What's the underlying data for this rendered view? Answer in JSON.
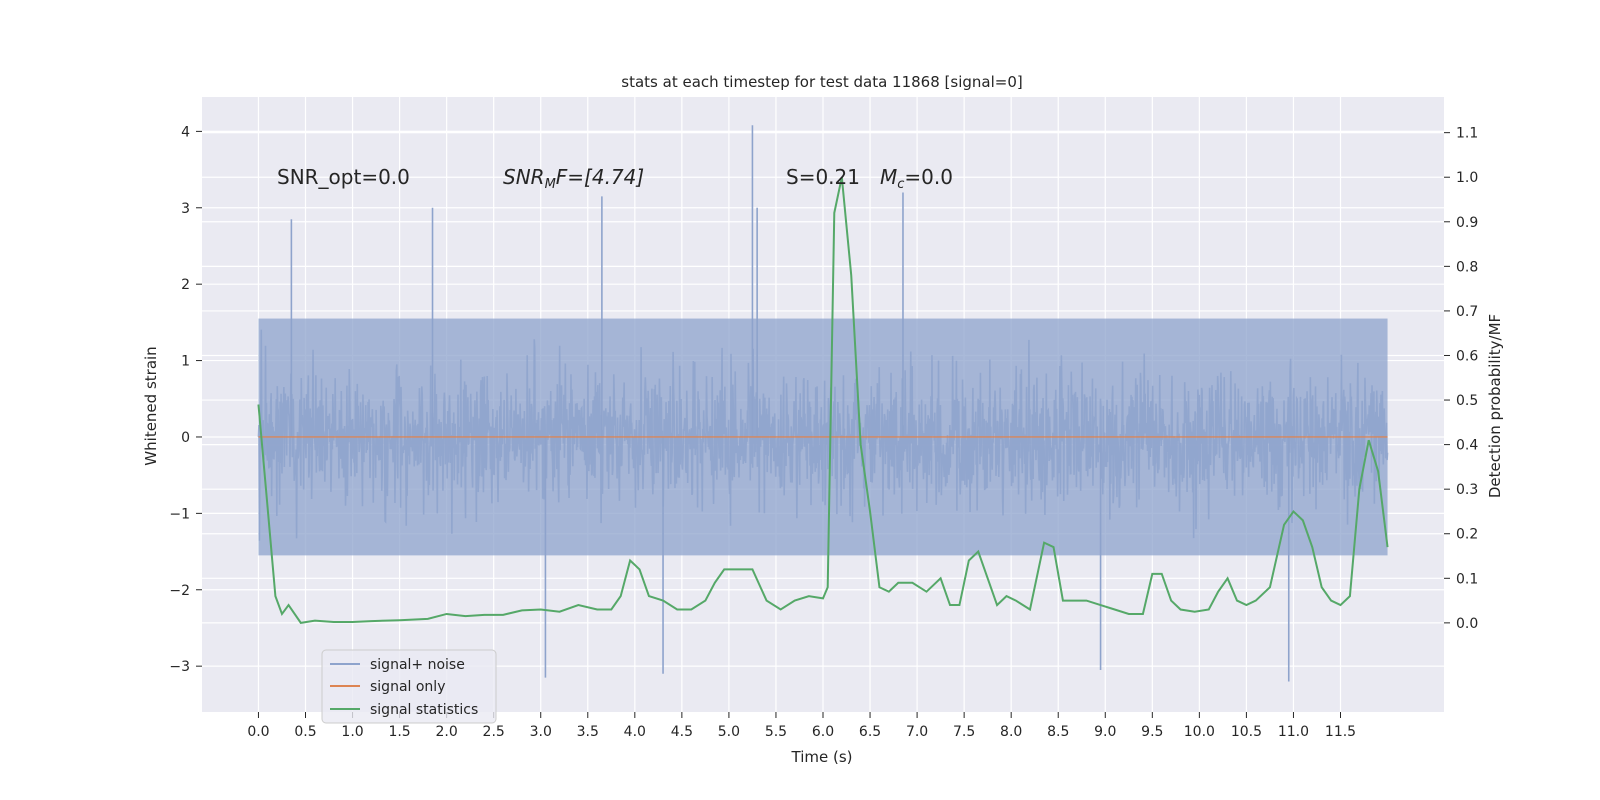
{
  "chart_data": {
    "type": "line",
    "title": "stats at each timestep for test data 11868 [signal=0]",
    "xlabel": "Time (s)",
    "ylabel_left": "Whitened strain",
    "ylabel_right": "Detection probability/MF",
    "xlim": [
      -0.6,
      12.6
    ],
    "ylim_left": [
      -3.6,
      4.45
    ],
    "ylim_right": [
      -0.2,
      1.18
    ],
    "x_ticks": [
      0.0,
      0.5,
      1.0,
      1.5,
      2.0,
      2.5,
      3.0,
      3.5,
      4.0,
      4.5,
      5.0,
      5.5,
      6.0,
      6.5,
      7.0,
      7.5,
      8.0,
      8.5,
      9.0,
      9.5,
      10.0,
      10.5,
      11.0,
      11.5
    ],
    "x_tick_labels": [
      "0.0",
      "0.5",
      "1.0",
      "1.5",
      "2.0",
      "2.5",
      "3.0",
      "3.5",
      "4.0",
      "4.5",
      "5.0",
      "5.5",
      "6.0",
      "6.5",
      "7.0",
      "7.5",
      "8.0",
      "8.5",
      "9.0",
      "9.5",
      "10.0",
      "10.5",
      "11.0",
      "11.5"
    ],
    "y_left_ticks": [
      4,
      3,
      2,
      1,
      0,
      -1,
      -2,
      -3
    ],
    "y_left_tick_labels": [
      "4",
      "3",
      "2",
      "1",
      "0",
      "−1",
      "−2",
      "−3"
    ],
    "y_right_ticks": [
      1.1,
      1.0,
      0.9,
      0.8,
      0.7,
      0.6,
      0.5,
      0.4,
      0.3,
      0.2,
      0.1,
      0.0
    ],
    "y_right_tick_labels": [
      "1.1",
      "1.0",
      "0.9",
      "0.8",
      "0.7",
      "0.6",
      "0.5",
      "0.4",
      "0.3",
      "0.2",
      "0.1",
      "0.0"
    ],
    "annotations": {
      "snr_opt": "SNR_opt=0.0",
      "snr_mf_main": "SNR",
      "snr_mf_sub": "M",
      "snr_mf_tail": "F=[4.74]",
      "s_stat": "S=0.21",
      "mc_main": "M",
      "mc_sub": "c",
      "mc_tail": "=0.0"
    },
    "legend": {
      "position": "lower-left",
      "entries": [
        "signal+ noise",
        "signal only",
        "signal statistics"
      ]
    },
    "colors": {
      "background": "#eaeaf2",
      "grid": "#ffffff",
      "noise": "#8ea3cc",
      "signal_only": "#dd8452",
      "statistics": "#55a868"
    },
    "series": [
      {
        "name": "signal+ noise",
        "axis": "left",
        "description": "whitened strain noise, approx. std 0.8, time 0 to 12 s",
        "envelope_seed": 11868,
        "x_range": [
          0.0,
          12.0
        ],
        "noise_std": 0.8,
        "notable_peaks": [
          {
            "x": 0.35,
            "y": 2.85
          },
          {
            "x": 1.85,
            "y": 3.0
          },
          {
            "x": 3.65,
            "y": 3.15
          },
          {
            "x": 5.25,
            "y": 4.08
          },
          {
            "x": 5.3,
            "y": 3.0
          },
          {
            "x": 6.85,
            "y": 3.2
          },
          {
            "x": 10.95,
            "y": -3.2
          },
          {
            "x": 4.3,
            "y": -3.1
          },
          {
            "x": 3.05,
            "y": -3.15
          },
          {
            "x": 8.95,
            "y": -3.05
          }
        ]
      },
      {
        "name": "signal only",
        "axis": "left",
        "x": [
          0.0,
          12.0
        ],
        "y": [
          0.0,
          0.0
        ]
      },
      {
        "name": "signal statistics",
        "axis": "right",
        "x": [
          0.0,
          0.08,
          0.18,
          0.25,
          0.32,
          0.45,
          0.6,
          0.8,
          1.0,
          1.2,
          1.5,
          1.8,
          2.0,
          2.2,
          2.4,
          2.6,
          2.8,
          3.0,
          3.2,
          3.4,
          3.6,
          3.75,
          3.85,
          3.95,
          4.05,
          4.15,
          4.3,
          4.45,
          4.6,
          4.75,
          4.85,
          4.95,
          5.1,
          5.25,
          5.4,
          5.55,
          5.7,
          5.85,
          6.0,
          6.05,
          6.12,
          6.2,
          6.3,
          6.4,
          6.5,
          6.6,
          6.7,
          6.8,
          6.95,
          7.1,
          7.25,
          7.35,
          7.45,
          7.55,
          7.65,
          7.75,
          7.85,
          7.95,
          8.05,
          8.2,
          8.35,
          8.45,
          8.55,
          8.65,
          8.8,
          8.95,
          9.1,
          9.25,
          9.4,
          9.5,
          9.6,
          9.7,
          9.8,
          9.95,
          10.1,
          10.2,
          10.3,
          10.4,
          10.5,
          10.6,
          10.75,
          10.9,
          11.0,
          11.1,
          11.2,
          11.3,
          11.4,
          11.5,
          11.6,
          11.7,
          11.8,
          11.9,
          12.0
        ],
        "y": [
          0.49,
          0.3,
          0.06,
          0.02,
          0.04,
          0.0,
          0.005,
          0.002,
          0.002,
          0.004,
          0.006,
          0.009,
          0.02,
          0.015,
          0.018,
          0.018,
          0.028,
          0.03,
          0.025,
          0.04,
          0.03,
          0.03,
          0.06,
          0.14,
          0.12,
          0.06,
          0.05,
          0.03,
          0.03,
          0.05,
          0.09,
          0.12,
          0.12,
          0.12,
          0.05,
          0.03,
          0.05,
          0.06,
          0.055,
          0.08,
          0.92,
          1.0,
          0.78,
          0.4,
          0.25,
          0.08,
          0.07,
          0.09,
          0.09,
          0.07,
          0.1,
          0.04,
          0.04,
          0.14,
          0.16,
          0.1,
          0.04,
          0.06,
          0.05,
          0.03,
          0.18,
          0.17,
          0.05,
          0.05,
          0.05,
          0.04,
          0.03,
          0.02,
          0.02,
          0.11,
          0.11,
          0.05,
          0.03,
          0.025,
          0.03,
          0.07,
          0.1,
          0.05,
          0.04,
          0.05,
          0.08,
          0.22,
          0.25,
          0.23,
          0.17,
          0.08,
          0.05,
          0.04,
          0.06,
          0.3,
          0.41,
          0.34,
          0.17
        ]
      }
    ]
  }
}
